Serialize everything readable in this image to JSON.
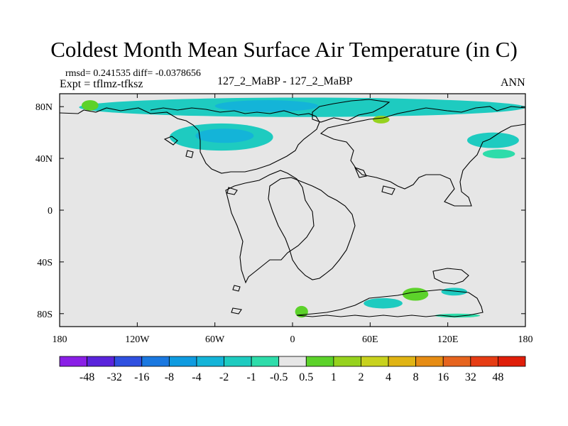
{
  "chart_data": {
    "type": "heatmap",
    "title": "Coldest Month Mean Surface Air Temperature (in C)",
    "stats_text": "rmsd= 0.241535 diff= -0.0378656",
    "expt_text": "Expt = tflmz-tfksz",
    "case_text": "127_2_MaBP - 127_2_MaBP",
    "season_text": "ANN",
    "x_tick_labels": [
      "180",
      "120W",
      "60W",
      "0",
      "60E",
      "120E",
      "180"
    ],
    "x_ticks": [
      -180,
      -120,
      -60,
      0,
      60,
      120,
      180
    ],
    "y_tick_labels": [
      "80N",
      "40N",
      "0",
      "40S",
      "80S"
    ],
    "y_ticks": [
      80,
      40,
      0,
      -40,
      -80
    ],
    "xlim": [
      -180,
      180
    ],
    "ylim": [
      -90,
      90
    ],
    "colorbar": {
      "labels": [
        "-48",
        "-32",
        "-16",
        "-8",
        "-4",
        "-2",
        "-1",
        "-0.5",
        "0.5",
        "1",
        "2",
        "4",
        "8",
        "16",
        "32",
        "48"
      ],
      "colors": [
        "#8a1fe6",
        "#5a24dc",
        "#2f50e0",
        "#1a78e0",
        "#0f9be0",
        "#14b4d8",
        "#1ecbc0",
        "#2edcaa",
        "#e6e6e6",
        "#5cd22a",
        "#96d21e",
        "#c8d21e",
        "#e0b414",
        "#e68c14",
        "#e6641e",
        "#e63c14",
        "#e01e0a"
      ]
    },
    "background_color": "#e6e6e6",
    "anomaly_regions": [
      {
        "name": "arctic-band",
        "lon": [
          -165,
          180
        ],
        "lat": [
          72,
          87
        ],
        "color": "#1ecbc0"
      },
      {
        "name": "north-america-cold",
        "lon": [
          -95,
          -15
        ],
        "lat": [
          46,
          67
        ],
        "color": "#1ecbc0"
      },
      {
        "name": "north-america-core",
        "lon": [
          -75,
          -30
        ],
        "lat": [
          52,
          63
        ],
        "color": "#14b4d8"
      },
      {
        "name": "arctic-core",
        "lon": [
          -60,
          20
        ],
        "lat": [
          76,
          85
        ],
        "color": "#14b4d8"
      },
      {
        "name": "east-asia-cold",
        "lon": [
          135,
          175
        ],
        "lat": [
          48,
          60
        ],
        "color": "#1ecbc0"
      },
      {
        "name": "pacific-cold",
        "lon": [
          147,
          172
        ],
        "lat": [
          40,
          47
        ],
        "color": "#2edcaa"
      },
      {
        "name": "alaska-warm",
        "lon": [
          -163,
          -150
        ],
        "lat": [
          77,
          85
        ],
        "color": "#5cd22a"
      },
      {
        "name": "siberia-warm",
        "lon": [
          62,
          75
        ],
        "lat": [
          67,
          73
        ],
        "color": "#96d21e"
      },
      {
        "name": "antarctic-warm",
        "lon": [
          85,
          105
        ],
        "lat": [
          -70,
          -60
        ],
        "color": "#5cd22a"
      },
      {
        "name": "antarctic-cold",
        "lon": [
          115,
          135
        ],
        "lat": [
          -66,
          -60
        ],
        "color": "#1ecbc0"
      },
      {
        "name": "antarctic-coast-cold",
        "lon": [
          110,
          145
        ],
        "lat": [
          -83,
          -80
        ],
        "color": "#2edcaa"
      },
      {
        "name": "antarctic-mid-cold",
        "lon": [
          55,
          85
        ],
        "lat": [
          -76,
          -68
        ],
        "color": "#1ecbc0"
      },
      {
        "name": "south-atlantic-warm",
        "lon": [
          2,
          12
        ],
        "lat": [
          -83,
          -74
        ],
        "color": "#5cd22a"
      }
    ]
  }
}
